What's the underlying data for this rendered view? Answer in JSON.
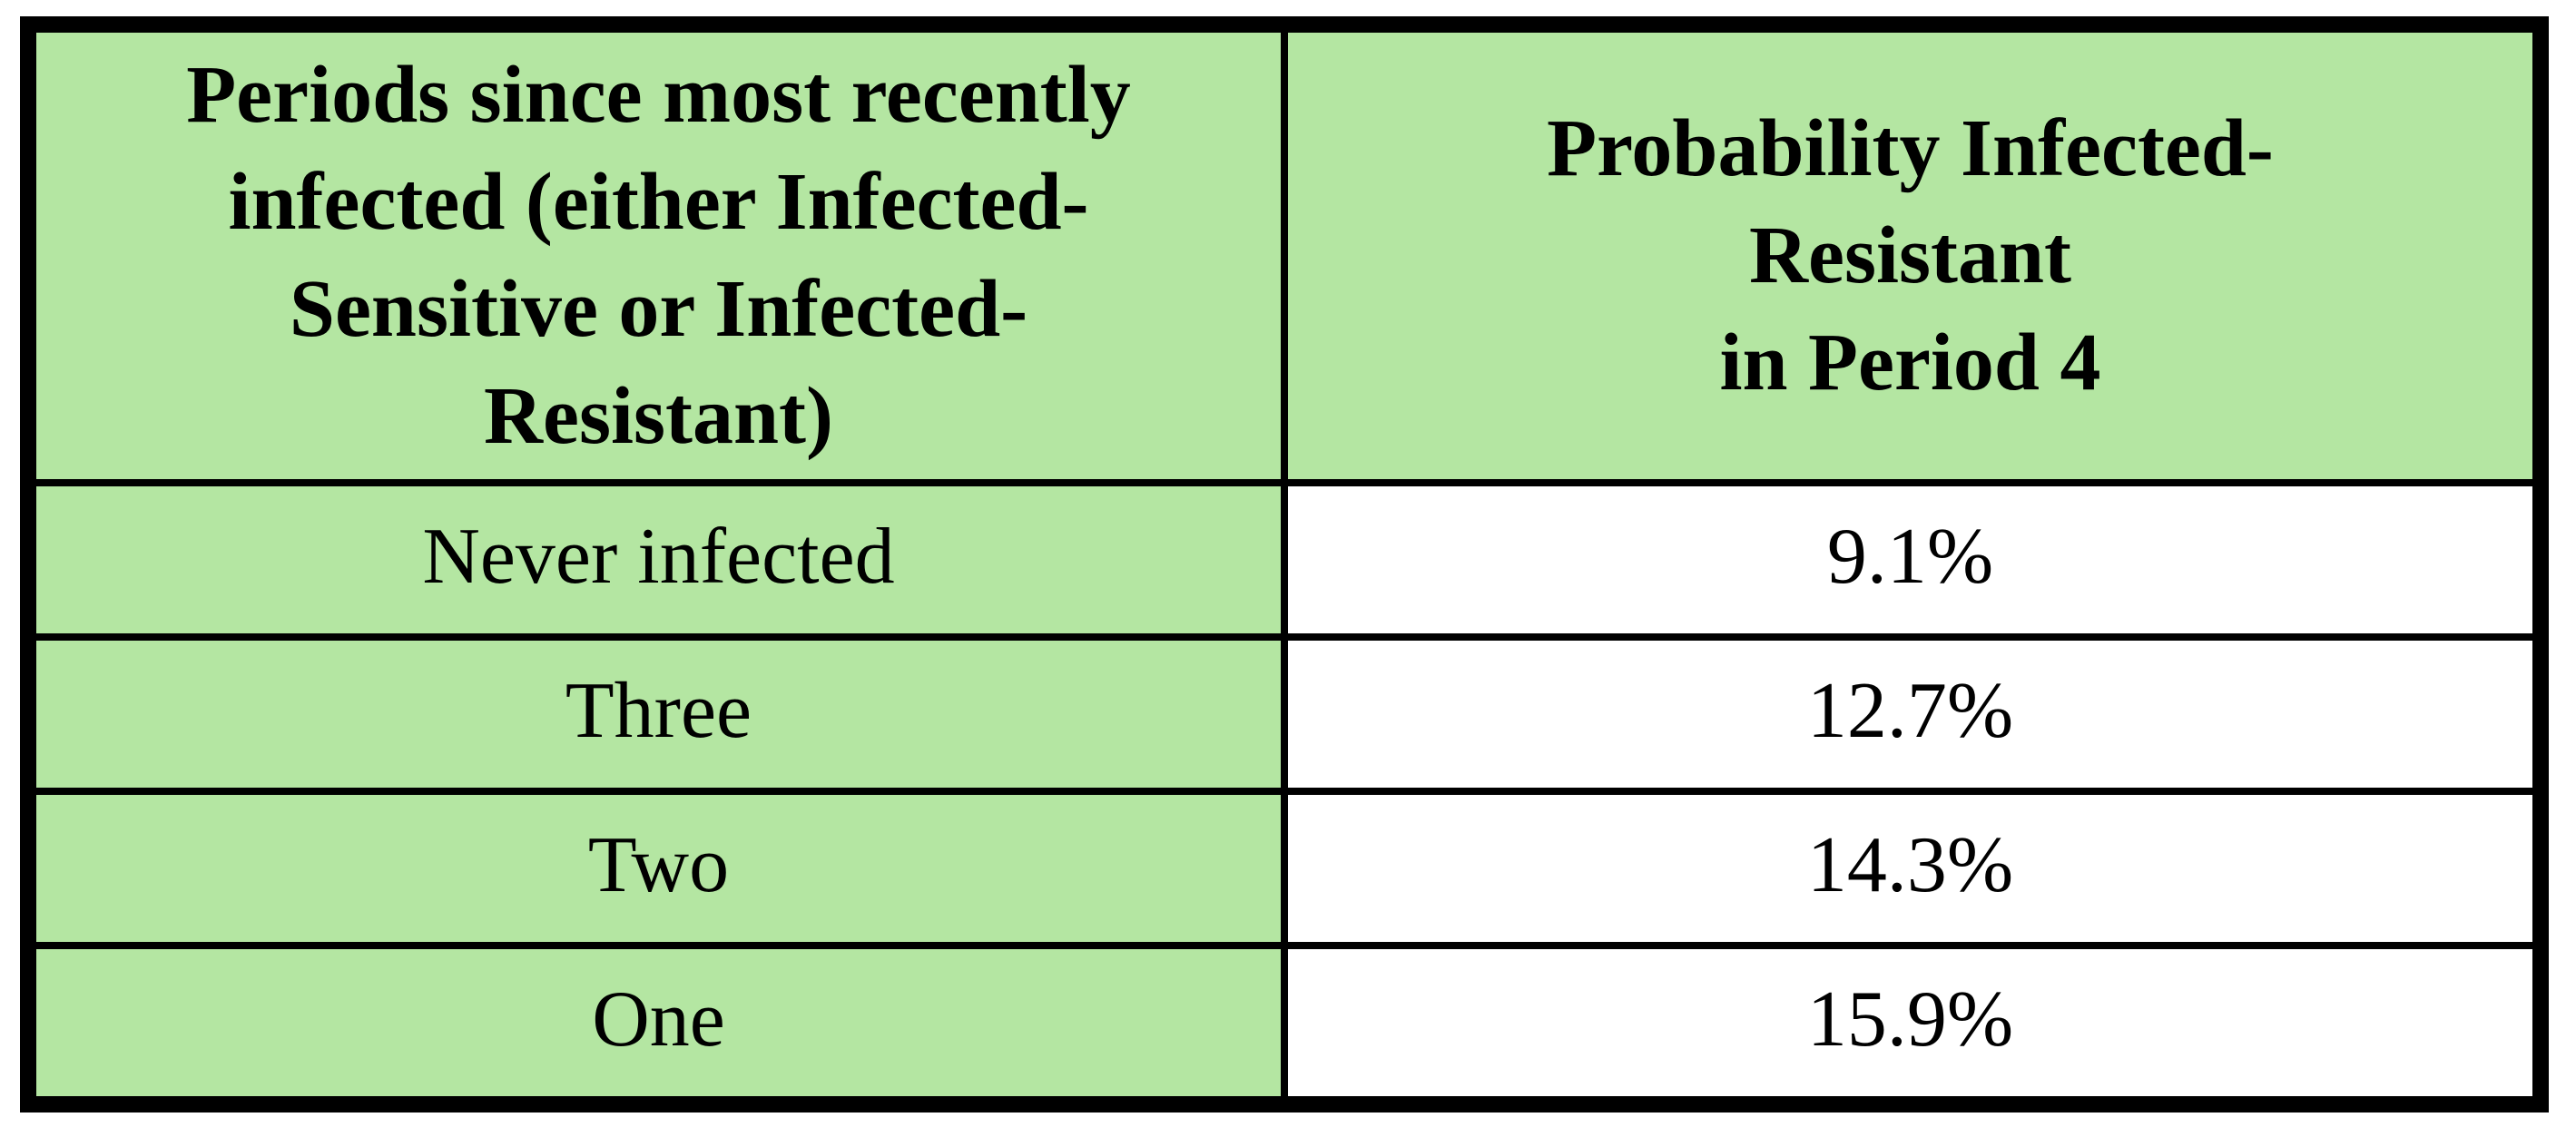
{
  "table": {
    "header_left_lines": [
      "Periods since most recently",
      "infected (either Infected-",
      "Sensitive or Infected-",
      "Resistant)"
    ],
    "header_right_lines": [
      "Probability Infected-",
      "Resistant",
      "in Period 4"
    ],
    "rows": [
      {
        "label": "Never infected",
        "value": "9.1%"
      },
      {
        "label": "Three",
        "value": "12.7%"
      },
      {
        "label": "Two",
        "value": "14.3%"
      },
      {
        "label": "One",
        "value": "15.9%"
      }
    ],
    "colors": {
      "header_bg": "#b4e6a2",
      "label_bg": "#b4e6a2",
      "value_bg": "#ffffff",
      "border": "#000000",
      "text": "#000000"
    }
  },
  "chart_data": {
    "type": "table",
    "columns": [
      "Periods since most recently infected (either Infected-Sensitive or Infected-Resistant)",
      "Probability Infected-Resistant in Period 4"
    ],
    "rows": [
      [
        "Never infected",
        "9.1%"
      ],
      [
        "Three",
        "12.7%"
      ],
      [
        "Two",
        "14.3%"
      ],
      [
        "One",
        "15.9%"
      ]
    ],
    "values_percent": [
      9.1,
      12.7,
      14.3,
      15.9
    ],
    "title": "",
    "legend": "none",
    "grid": "solid black rules"
  }
}
